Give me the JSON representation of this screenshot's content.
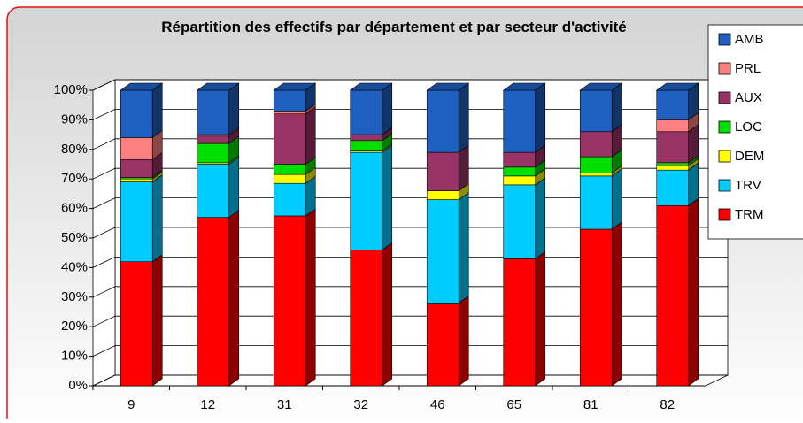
{
  "chart_data": {
    "type": "bar",
    "stacked": true,
    "title": "Répartition des effectifs par département et par secteur d'activité",
    "categories": [
      "9",
      "12",
      "31",
      "32",
      "46",
      "65",
      "81",
      "82"
    ],
    "ylim": [
      0,
      100
    ],
    "yticks": [
      {
        "value": 0,
        "label": "0%"
      },
      {
        "value": 10,
        "label": "10%"
      },
      {
        "value": 20,
        "label": "20%"
      },
      {
        "value": 30,
        "label": "30%"
      },
      {
        "value": 40,
        "label": "40%"
      },
      {
        "value": 50,
        "label": "50%"
      },
      {
        "value": 60,
        "label": "60%"
      },
      {
        "value": 70,
        "label": "70%"
      },
      {
        "value": 80,
        "label": "80%"
      },
      {
        "value": 90,
        "label": "90%"
      },
      {
        "value": 100,
        "label": "100%"
      }
    ],
    "grid": true,
    "legend": "right",
    "series": [
      {
        "name": "TRM",
        "color": "#ff0000",
        "values": [
          42,
          57,
          57.5,
          46,
          28,
          43,
          53,
          61
        ]
      },
      {
        "name": "TRV",
        "color": "#00ccff",
        "values": [
          27,
          18,
          11,
          33,
          35,
          25,
          18,
          12
        ]
      },
      {
        "name": "DEM",
        "color": "#ffff00",
        "values": [
          1,
          0.5,
          3,
          0.5,
          3,
          3,
          1,
          1.5
        ]
      },
      {
        "name": "LOC",
        "color": "#00e000",
        "values": [
          0.5,
          6.5,
          3.5,
          3.5,
          0,
          3,
          5.5,
          1
        ]
      },
      {
        "name": "AUX",
        "color": "#993366",
        "values": [
          6,
          2.5,
          17,
          2,
          13,
          5,
          8.5,
          10.5
        ]
      },
      {
        "name": "PRL",
        "color": "#ff8080",
        "values": [
          7.5,
          0.5,
          1,
          0,
          0,
          0,
          0,
          4
        ]
      },
      {
        "name": "AMB",
        "color": "#1f5fbf",
        "values": [
          16,
          15,
          7,
          15,
          21,
          21,
          14,
          10
        ]
      }
    ]
  }
}
